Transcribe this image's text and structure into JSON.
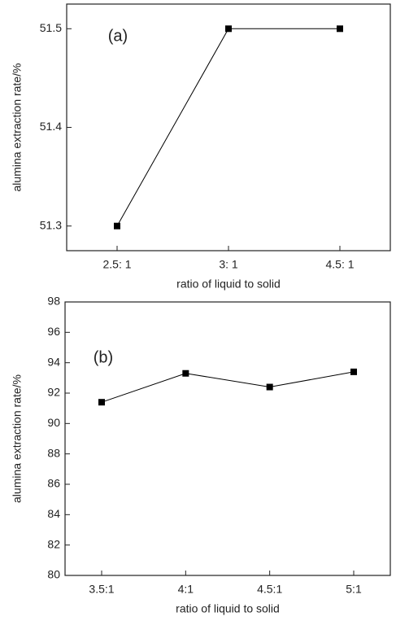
{
  "chart_data": [
    {
      "type": "line",
      "annotation": "(a)",
      "x_label": "ratio of liquid to solid",
      "y_label": "alumina extraction rate/%",
      "categories": [
        "2.5: 1",
        "3: 1",
        "4.5: 1"
      ],
      "values": [
        51.3,
        51.5,
        51.5
      ],
      "color": "#000000",
      "ylim": [
        51.275,
        51.525
      ],
      "yticks": [
        51.3,
        51.4,
        51.5
      ],
      "grid": false
    },
    {
      "type": "line",
      "annotation": "(b)",
      "x_label": "ratio of liquid to solid",
      "y_label": "alumina extraction rate/%",
      "categories": [
        "3.5:1",
        "4:1",
        "4.5:1",
        "5:1"
      ],
      "values": [
        91.4,
        93.3,
        92.4,
        93.4
      ],
      "color": "#000000",
      "ylim": [
        80,
        98
      ],
      "yticks": [
        80,
        82,
        84,
        86,
        88,
        90,
        92,
        94,
        96,
        98
      ],
      "grid": false
    }
  ]
}
